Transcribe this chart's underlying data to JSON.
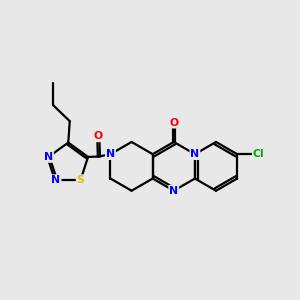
{
  "background_color": "#e8e8e8",
  "bond_color": "#000000",
  "bond_width": 1.6,
  "atom_colors": {
    "N": "#0000ff",
    "O": "#ff0000",
    "S": "#cccc00",
    "Cl": "#00aa00",
    "C": "#000000"
  },
  "figsize": [
    3.0,
    3.0
  ],
  "dpi": 100,
  "xlim": [
    0,
    10
  ],
  "ylim": [
    2.5,
    8.5
  ]
}
